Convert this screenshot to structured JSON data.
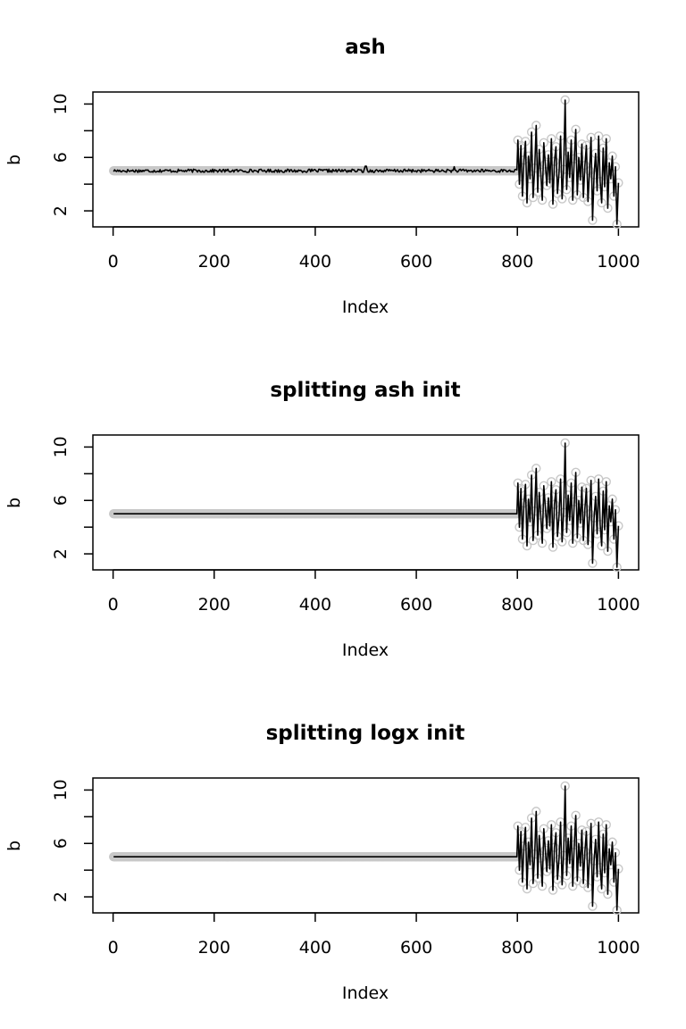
{
  "chart_data": [
    {
      "type": "scatter",
      "title": "ash",
      "xlabel": "Index",
      "ylabel": "b",
      "xlim": [
        -40,
        1040
      ],
      "ylim": [
        0.8,
        10.9
      ],
      "xticks": [
        0,
        200,
        400,
        600,
        800,
        1000
      ],
      "yticks": [
        2,
        6,
        10
      ],
      "yminor_ticks": [
        4,
        8
      ],
      "grid": false,
      "legend": "none",
      "series": [
        {
          "role": "observed points",
          "style": "open circles, light grey",
          "color": "#c8c8c8",
          "segments": [
            {
              "x_from": 1,
              "x_to": 800,
              "value": 5.0
            },
            {
              "x_from": 801,
              "x_to": 1000,
              "values": [
                7.3,
                4.0,
                6.9,
                3.1,
                5.8,
                7.2,
                2.6,
                6.1,
                4.4,
                7.9,
                3.0,
                5.2,
                8.4,
                3.4,
                6.6,
                4.9,
                2.8,
                7.1,
                5.5,
                3.9,
                6.2,
                4.1,
                7.4,
                2.5,
                5.7,
                6.8,
                3.3,
                4.8,
                7.6,
                2.9,
                5.1,
                10.3,
                3.6,
                6.4,
                4.5,
                7.3,
                2.8,
                5.9,
                8.1,
                3.2,
                6.0,
                4.3,
                7.0,
                3.0,
                5.4,
                6.9,
                2.7,
                5.0,
                7.5,
                1.3,
                4.7,
                6.3,
                3.5,
                7.6,
                4.2,
                2.6,
                6.7,
                3.8,
                7.4,
                2.2,
                5.6,
                4.4,
                6.1,
                3.1,
                5.3,
                1.0,
                4.1
              ]
            }
          ]
        },
        {
          "role": "fitted line",
          "style": "black line",
          "color": "#000000",
          "segments": [
            {
              "x_from": 1,
              "x_to": 800,
              "value": 5.0,
              "noise": 0.12,
              "spikes": [
                {
                  "x": 500,
                  "y": 5.35
                },
                {
                  "x": 675,
                  "y": 5.3
                }
              ]
            },
            {
              "x_from": 801,
              "x_to": 1000,
              "follows_points": true
            }
          ]
        }
      ]
    },
    {
      "type": "scatter",
      "title": "splitting ash init",
      "xlabel": "Index",
      "ylabel": "b",
      "xlim": [
        -40,
        1040
      ],
      "ylim": [
        0.8,
        10.9
      ],
      "xticks": [
        0,
        200,
        400,
        600,
        800,
        1000
      ],
      "yticks": [
        2,
        6,
        10
      ],
      "yminor_ticks": [
        4,
        8
      ],
      "grid": false,
      "legend": "none",
      "series": [
        {
          "role": "observed points",
          "style": "open circles, light grey",
          "color": "#c8c8c8",
          "segments": [
            {
              "x_from": 1,
              "x_to": 800,
              "value": 5.0
            },
            {
              "x_from": 801,
              "x_to": 1000,
              "values": [
                7.3,
                4.0,
                6.9,
                3.1,
                5.8,
                7.2,
                2.6,
                6.1,
                4.4,
                7.9,
                3.0,
                5.2,
                8.4,
                3.4,
                6.6,
                4.9,
                2.8,
                7.1,
                5.5,
                3.9,
                6.2,
                4.1,
                7.4,
                2.5,
                5.7,
                6.8,
                3.3,
                4.8,
                7.6,
                2.9,
                5.1,
                10.3,
                3.6,
                6.4,
                4.5,
                7.3,
                2.8,
                5.9,
                8.1,
                3.2,
                6.0,
                4.3,
                7.0,
                3.0,
                5.4,
                6.9,
                2.7,
                5.0,
                7.5,
                1.3,
                4.7,
                6.3,
                3.5,
                7.6,
                4.2,
                2.6,
                6.7,
                3.8,
                7.4,
                2.2,
                5.6,
                4.4,
                6.1,
                3.1,
                5.3,
                1.0,
                4.1
              ]
            }
          ]
        },
        {
          "role": "fitted line",
          "style": "black line",
          "color": "#000000",
          "segments": [
            {
              "x_from": 1,
              "x_to": 800,
              "value": 5.0,
              "noise": 0.0
            },
            {
              "x_from": 801,
              "x_to": 1000,
              "follows_points": true
            }
          ]
        }
      ]
    },
    {
      "type": "scatter",
      "title": "splitting logx init",
      "xlabel": "Index",
      "ylabel": "b",
      "xlim": [
        -40,
        1040
      ],
      "ylim": [
        0.8,
        10.9
      ],
      "xticks": [
        0,
        200,
        400,
        600,
        800,
        1000
      ],
      "yticks": [
        2,
        6,
        10
      ],
      "yminor_ticks": [
        4,
        8
      ],
      "grid": false,
      "legend": "none",
      "series": [
        {
          "role": "observed points",
          "style": "open circles, light grey",
          "color": "#c8c8c8",
          "segments": [
            {
              "x_from": 1,
              "x_to": 800,
              "value": 5.0
            },
            {
              "x_from": 801,
              "x_to": 1000,
              "values": [
                7.3,
                4.0,
                6.9,
                3.1,
                5.8,
                7.2,
                2.6,
                6.1,
                4.4,
                7.9,
                3.0,
                5.2,
                8.4,
                3.4,
                6.6,
                4.9,
                2.8,
                7.1,
                5.5,
                3.9,
                6.2,
                4.1,
                7.4,
                2.5,
                5.7,
                6.8,
                3.3,
                4.8,
                7.6,
                2.9,
                5.1,
                10.3,
                3.6,
                6.4,
                4.5,
                7.3,
                2.8,
                5.9,
                8.1,
                3.2,
                6.0,
                4.3,
                7.0,
                3.0,
                5.4,
                6.9,
                2.7,
                5.0,
                7.5,
                1.3,
                4.7,
                6.3,
                3.5,
                7.6,
                4.2,
                2.6,
                6.7,
                3.8,
                7.4,
                2.2,
                5.6,
                4.4,
                6.1,
                3.1,
                5.3,
                1.0,
                4.1
              ]
            }
          ]
        },
        {
          "role": "fitted line",
          "style": "black line",
          "color": "#000000",
          "segments": [
            {
              "x_from": 1,
              "x_to": 800,
              "value": 5.0,
              "noise": 0.0
            },
            {
              "x_from": 801,
              "x_to": 1000,
              "follows_points": true
            }
          ]
        }
      ]
    }
  ]
}
